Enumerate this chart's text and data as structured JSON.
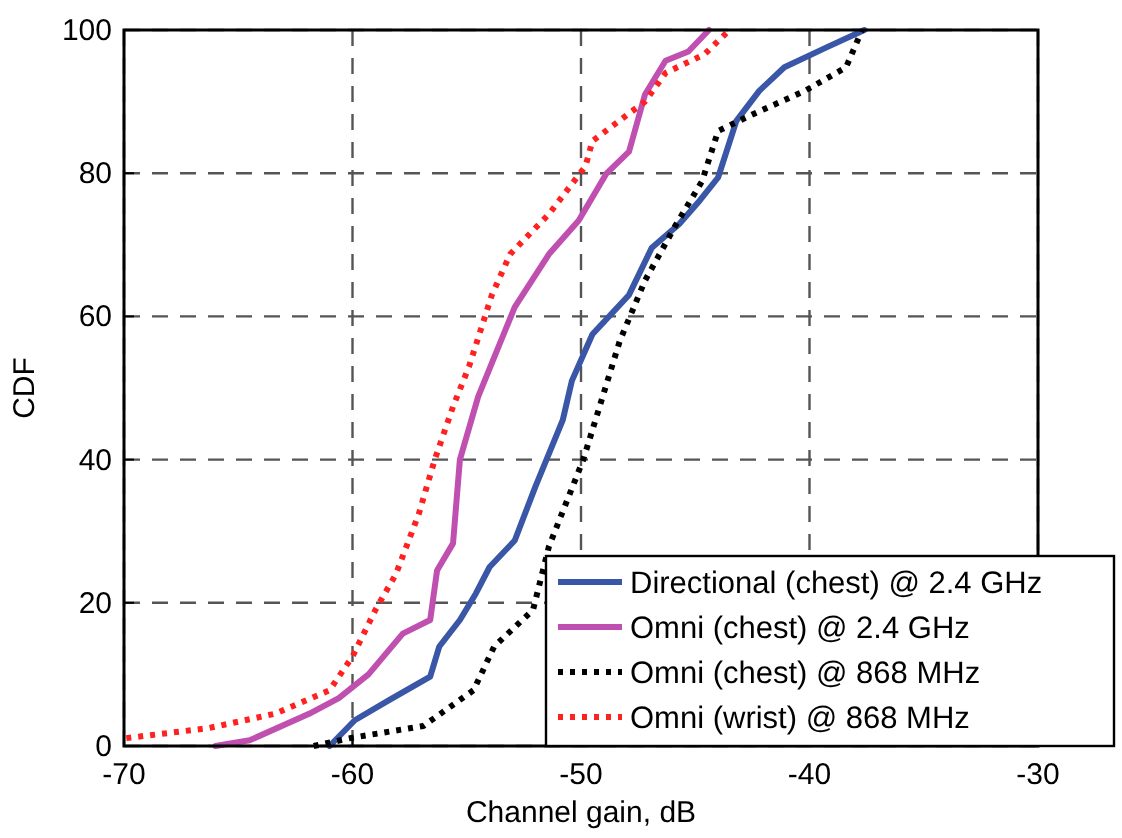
{
  "chart_data": {
    "type": "line",
    "xlabel": "Channel gain, dB",
    "ylabel": "CDF",
    "xlim": [
      -70,
      -30
    ],
    "xticks": [
      -70,
      -60,
      -50,
      -40,
      -30
    ],
    "ylim": [
      0,
      100
    ],
    "yticks": [
      0,
      20,
      40,
      60,
      80,
      100
    ],
    "grid": true,
    "legend": "bottom right",
    "marker": "none",
    "series": [
      {
        "name": "Directional (chest) @ 2.4 GHz",
        "color": "#3a57a7",
        "line_style": "solid",
        "x": [
          -61,
          -59.9,
          -58.4,
          -56.6,
          -56.2,
          -55.3,
          -54.6,
          -54,
          -52.9,
          -52,
          -50.8,
          -50.4,
          -49.5,
          -47.9,
          -46.9,
          -45.7,
          -44.8,
          -44,
          -43.2,
          -42.2,
          -41.1,
          -39.3,
          -37.6
        ],
        "values": [
          0,
          3.6,
          6.4,
          9.7,
          13.9,
          17.6,
          21.3,
          25,
          28.7,
          36.2,
          45.5,
          51,
          57.5,
          63,
          69.6,
          72.9,
          76.2,
          79.4,
          87.3,
          91.5,
          94.8,
          97.5,
          100
        ]
      },
      {
        "name": "Omni (chest) @ 2.4 GHz",
        "color": "#c050b0",
        "line_style": "solid",
        "x": [
          -66,
          -64.5,
          -61.9,
          -60.6,
          -59.3,
          -57.8,
          -56.6,
          -56.3,
          -55.6,
          -55.3,
          -54.5,
          -52.9,
          -51.4,
          -50.1,
          -48.9,
          -47.9,
          -47.2,
          -46.3,
          -45.3,
          -44.4
        ],
        "values": [
          0,
          0.8,
          4.5,
          6.7,
          10,
          15.7,
          17.6,
          24.5,
          28.3,
          40,
          48.8,
          61.3,
          68.7,
          73.4,
          79.9,
          83,
          91,
          95.7,
          97,
          100
        ]
      },
      {
        "name": "Omni (chest) @ 868 MHz",
        "color": "#000000",
        "line_style": "dotted",
        "x": [
          -61.7,
          -60.1,
          -56.9,
          -54.7,
          -53.8,
          -52.1,
          -51.4,
          -49.9,
          -48.3,
          -47.2,
          -45.9,
          -44.7,
          -44,
          -42.5,
          -40.2,
          -38.4,
          -37.7
        ],
        "values": [
          0,
          1.1,
          2.8,
          7.8,
          13.9,
          19,
          27.9,
          40,
          56.6,
          65,
          72.5,
          78.9,
          85.9,
          88.2,
          91.5,
          94.8,
          100
        ]
      },
      {
        "name": "Omni (wrist) @ 868 MHz",
        "color": "#ff2020",
        "line_style": "dotted",
        "x": [
          -69.9,
          -66.3,
          -63.4,
          -61,
          -60,
          -59,
          -58.1,
          -57.1,
          -56.4,
          -55.6,
          -54.9,
          -53.9,
          -53.1,
          -51.4,
          -49.8,
          -49.5,
          -47.2,
          -46.3,
          -44.6,
          -43.5
        ],
        "values": [
          1.1,
          2.5,
          4.5,
          7.8,
          12.5,
          19,
          24,
          32.4,
          40,
          47.4,
          53,
          63,
          68.7,
          74.3,
          81,
          84.5,
          90,
          94,
          96.6,
          100
        ]
      }
    ]
  }
}
